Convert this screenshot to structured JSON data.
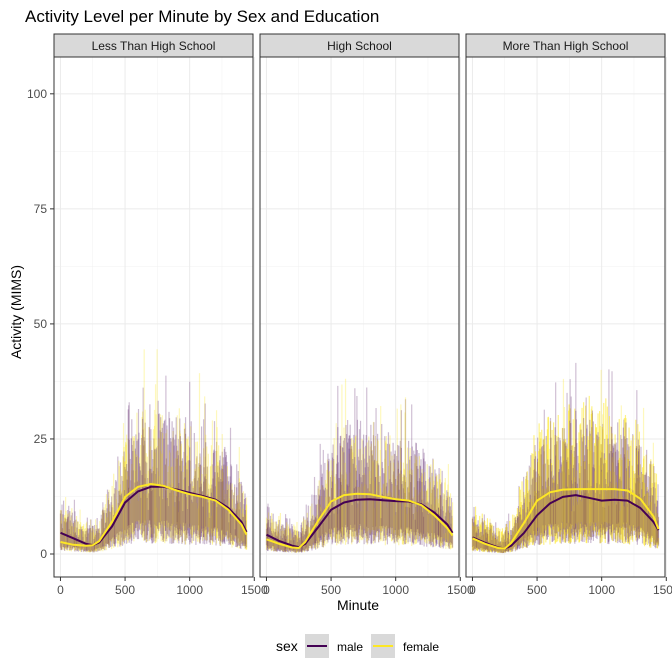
{
  "chart_data": {
    "type": "line",
    "title": "Activity Level per Minute by Sex and Education",
    "xlabel": "Minute",
    "ylabel": "Activity (MIMS)",
    "xlim": [
      -50,
      1490
    ],
    "ylim": [
      -5,
      108
    ],
    "xticks": [
      0,
      500,
      1000,
      1500
    ],
    "xtick_labels": [
      "0",
      "500",
      "1000",
      "1500"
    ],
    "yticks": [
      0,
      25,
      50,
      75,
      100
    ],
    "ytick_labels": [
      "0",
      "25",
      "50",
      "75",
      "100"
    ],
    "grid": true,
    "legend": {
      "position": "bottom",
      "title": "sex",
      "entries": [
        {
          "label": "male",
          "color": "#440154"
        },
        {
          "label": "female",
          "color": "#FDE725"
        }
      ]
    },
    "facets": [
      {
        "label": "Less Than High School",
        "series": [
          {
            "name": "male",
            "color": "#440154",
            "x": [
              0,
              100,
              200,
              250,
              300,
              400,
              500,
              600,
              700,
              800,
              900,
              1000,
              1100,
              1200,
              1300,
              1400,
              1440
            ],
            "y": [
              4.6,
              3.4,
              2.2,
              1.9,
              2.5,
              6.0,
              11.2,
              13.6,
              14.6,
              14.6,
              14.0,
              13.3,
              12.6,
              11.8,
              10.0,
              7.0,
              4.8
            ]
          },
          {
            "name": "female",
            "color": "#FDE725",
            "x": [
              0,
              100,
              200,
              250,
              300,
              400,
              500,
              600,
              700,
              800,
              900,
              1000,
              1100,
              1200,
              1300,
              1400,
              1440
            ],
            "y": [
              2.6,
              2.0,
              1.8,
              1.9,
              2.8,
              7.0,
              12.4,
              14.6,
              15.2,
              14.8,
              13.8,
              13.0,
              12.4,
              11.6,
              9.6,
              6.4,
              4.2
            ]
          }
        ]
      },
      {
        "label": "High School",
        "series": [
          {
            "name": "male",
            "color": "#440154",
            "x": [
              0,
              100,
              200,
              250,
              300,
              400,
              500,
              600,
              700,
              800,
              900,
              1000,
              1100,
              1200,
              1300,
              1400,
              1440
            ],
            "y": [
              4.2,
              2.8,
              1.8,
              1.5,
              2.2,
              5.8,
              9.6,
              11.2,
              11.8,
              11.9,
              11.7,
              11.5,
              11.4,
              10.8,
              9.0,
              6.4,
              4.6
            ]
          },
          {
            "name": "female",
            "color": "#FDE725",
            "x": [
              0,
              100,
              200,
              250,
              300,
              400,
              500,
              600,
              700,
              800,
              900,
              1000,
              1100,
              1200,
              1300,
              1400,
              1440
            ],
            "y": [
              3.2,
              2.2,
              1.4,
              1.3,
              2.6,
              7.2,
              11.4,
              12.8,
              13.1,
              13.0,
              12.4,
              11.9,
              11.6,
              10.6,
              8.4,
              5.6,
              4.0
            ]
          }
        ]
      },
      {
        "label": "More Than High School",
        "series": [
          {
            "name": "male",
            "color": "#440154",
            "x": [
              0,
              100,
              200,
              250,
              300,
              400,
              500,
              600,
              700,
              800,
              900,
              1000,
              1100,
              1200,
              1300,
              1400,
              1440
            ],
            "y": [
              3.6,
              2.4,
              1.4,
              1.2,
              1.8,
              4.6,
              8.4,
              11.0,
              12.4,
              12.8,
              12.2,
              11.6,
              11.8,
              11.6,
              10.0,
              7.0,
              5.2
            ]
          },
          {
            "name": "female",
            "color": "#FDE725",
            "x": [
              0,
              100,
              200,
              250,
              300,
              400,
              500,
              600,
              700,
              800,
              900,
              1000,
              1100,
              1200,
              1300,
              1400,
              1440
            ],
            "y": [
              3.4,
              2.2,
              1.3,
              1.2,
              2.4,
              6.8,
              11.6,
              13.4,
              14.0,
              14.1,
              14.1,
              14.1,
              14.1,
              13.8,
              12.0,
              8.2,
              5.4
            ]
          }
        ]
      }
    ]
  }
}
